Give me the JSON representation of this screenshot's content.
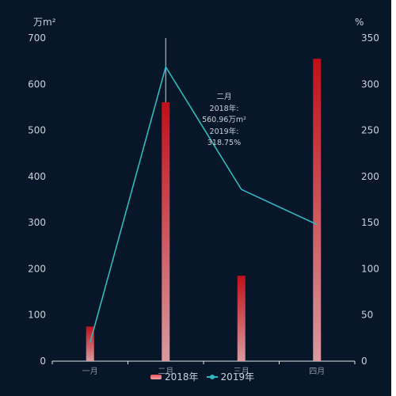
{
  "chart_data": {
    "type": "bar",
    "categories": [
      "一月",
      "二月",
      "三月",
      "四月"
    ],
    "series": [
      {
        "name": "2018年",
        "type": "bar",
        "axis": "left",
        "values": [
          75,
          560.96,
          185,
          655
        ],
        "color_top": "#c0101a",
        "color_bottom": "#d99aa0"
      },
      {
        "name": "2019年",
        "type": "line",
        "axis": "right",
        "values": [
          20,
          318.75,
          186,
          148
        ],
        "color": "#2fb8bd"
      }
    ],
    "y_left": {
      "unit": "万m²",
      "ticks": [
        "0",
        "100",
        "200",
        "300",
        "400",
        "500",
        "600",
        "700"
      ],
      "range": [
        0,
        700
      ]
    },
    "y_right": {
      "unit": "%",
      "ticks": [
        "0",
        "50",
        "100",
        "150",
        "200",
        "250",
        "300",
        "350"
      ],
      "range": [
        0,
        350
      ]
    },
    "grid": false,
    "legend_position": "bottom",
    "tooltip": {
      "category": "二月",
      "category_index": 1,
      "line1": "2018年:",
      "line2": "560.96万m²",
      "line3": "2019年:",
      "line4": "318.75%"
    }
  }
}
